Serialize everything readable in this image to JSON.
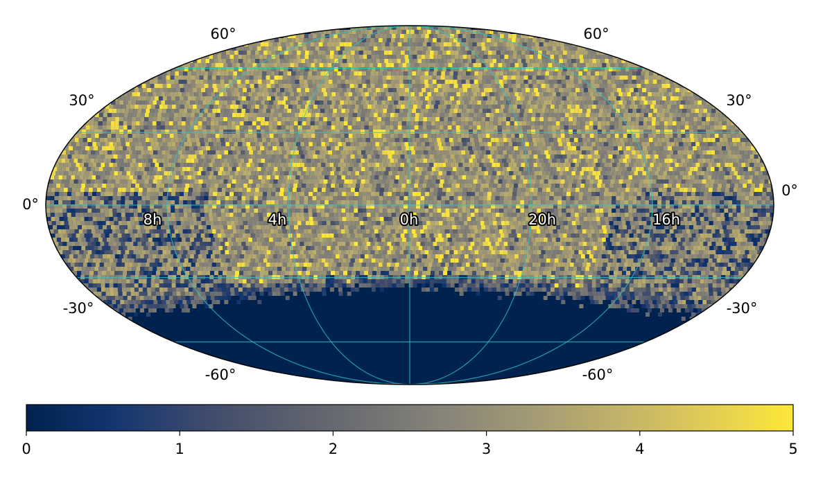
{
  "chart_data": {
    "type": "heatmap",
    "projection": "mollweide",
    "title": "",
    "colormap": "cividis",
    "colorbar": {
      "range": [
        0,
        5
      ],
      "ticks": [
        "0",
        "1",
        "2",
        "3",
        "4",
        "5"
      ],
      "colors": [
        "#00224e",
        "#123570",
        "#3b496c",
        "#575d6d",
        "#707173",
        "#8a8678",
        "#a59c74",
        "#c3b369",
        "#e1cc55",
        "#fee838"
      ]
    },
    "declination_ticks": {
      "left": [
        "60°",
        "30°",
        "0°",
        "-30°",
        "-60°"
      ],
      "right": [
        "60°",
        "30°",
        "0°",
        "-30°",
        "-60°"
      ],
      "values_deg": [
        60,
        30,
        0,
        -30,
        -60
      ]
    },
    "ra_labels": [
      "8h",
      "4h",
      "0h",
      "20h",
      "16h"
    ],
    "ra_label_values_hours": [
      8,
      4,
      0,
      20,
      16
    ],
    "grid": true,
    "grid_color": "#2ec4c4",
    "data_summary": {
      "zero_region_below_dec_deg": -32,
      "typical_value_range": [
        2,
        5
      ]
    }
  }
}
